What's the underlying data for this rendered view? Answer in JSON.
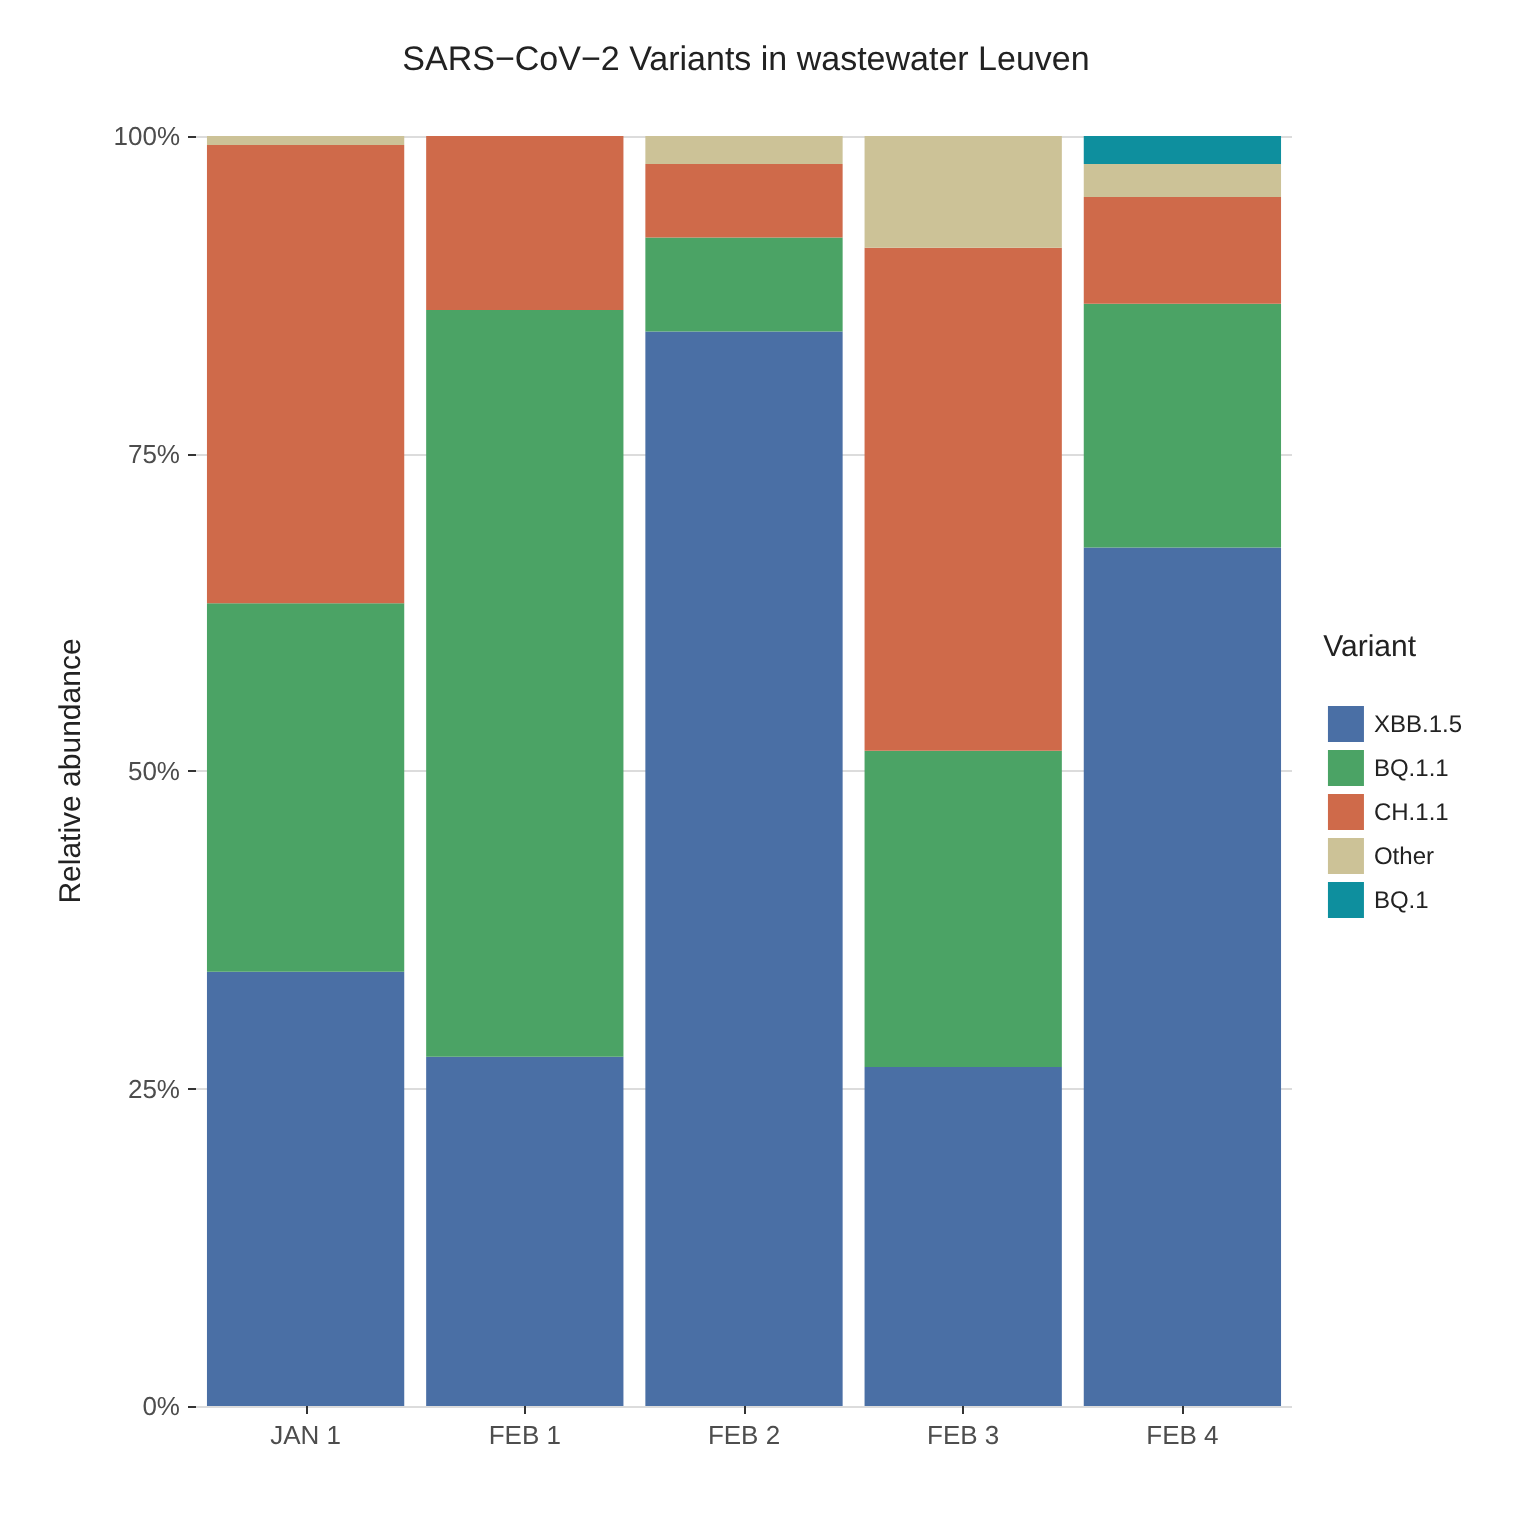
{
  "chart_data": {
    "type": "bar",
    "title": "SARS−CoV−2 Variants in wastewater Leuven",
    "ylabel": "Relative abundance",
    "legend_title": "Variant",
    "categories": [
      "JAN 1",
      "FEB 1",
      "FEB 2",
      "FEB 3",
      "FEB 4"
    ],
    "stacked": true,
    "series": [
      {
        "name": "XBB.1.5",
        "color": "#4a6fa5",
        "values": [
          34.2,
          27.5,
          84.6,
          26.7,
          67.6
        ]
      },
      {
        "name": "BQ.1.1",
        "color": "#4ba365",
        "values": [
          29.0,
          58.8,
          7.4,
          24.9,
          19.2
        ]
      },
      {
        "name": "CH.1.1",
        "color": "#cf6a4a",
        "values": [
          36.1,
          13.7,
          5.8,
          39.6,
          8.4
        ]
      },
      {
        "name": "Other",
        "color": "#ccc297",
        "values": [
          0.7,
          0,
          2.2,
          8.8,
          2.6
        ]
      },
      {
        "name": "BQ.1",
        "color": "#0e8f9e",
        "values": [
          0,
          0,
          0,
          0,
          2.2
        ]
      }
    ],
    "ylim": [
      0,
      100
    ],
    "yticks": [
      {
        "value": 0,
        "label": "0%"
      },
      {
        "value": 25,
        "label": "25%"
      },
      {
        "value": 50,
        "label": "50%"
      },
      {
        "value": 75,
        "label": "75%"
      },
      {
        "value": 100,
        "label": "100%"
      }
    ],
    "grid": "y",
    "legend": "right"
  }
}
